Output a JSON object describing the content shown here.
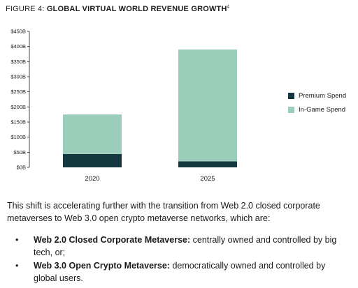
{
  "figure": {
    "label": "FIGURE 4:",
    "title": "GLOBAL VIRTUAL WORLD REVENUE GROWTH",
    "footnote": "4"
  },
  "chart_data": {
    "type": "bar",
    "stacked": true,
    "categories": [
      "2020",
      "2025"
    ],
    "series": [
      {
        "name": "Premium Spend",
        "color": "#14373f",
        "values": [
          44,
          20
        ]
      },
      {
        "name": "In-Game Spend",
        "color": "#9bcdbb",
        "values": [
          131,
          370
        ]
      }
    ],
    "yticks": [
      "$0B",
      "$50B",
      "$100B",
      "$150B",
      "$200B",
      "$250B",
      "$300B",
      "$350B",
      "$400B",
      "$450B"
    ],
    "ylim": [
      0,
      450
    ],
    "legend_position": "right",
    "grid": false
  },
  "body": {
    "paragraph": "This shift is accelerating further with the transition from Web 2.0 closed corporate metaverses to Web 3.0 open crypto metaverse networks, which are:",
    "bullets": [
      {
        "marker": "•",
        "term": "Web 2.0 Closed Corporate Metaverse:",
        "text": " centrally owned and controlled by big tech, or;"
      },
      {
        "marker": "•",
        "term": "Web 3.0 Open Crypto Metaverse:",
        "text": " democratically owned and controlled by global users."
      }
    ]
  }
}
